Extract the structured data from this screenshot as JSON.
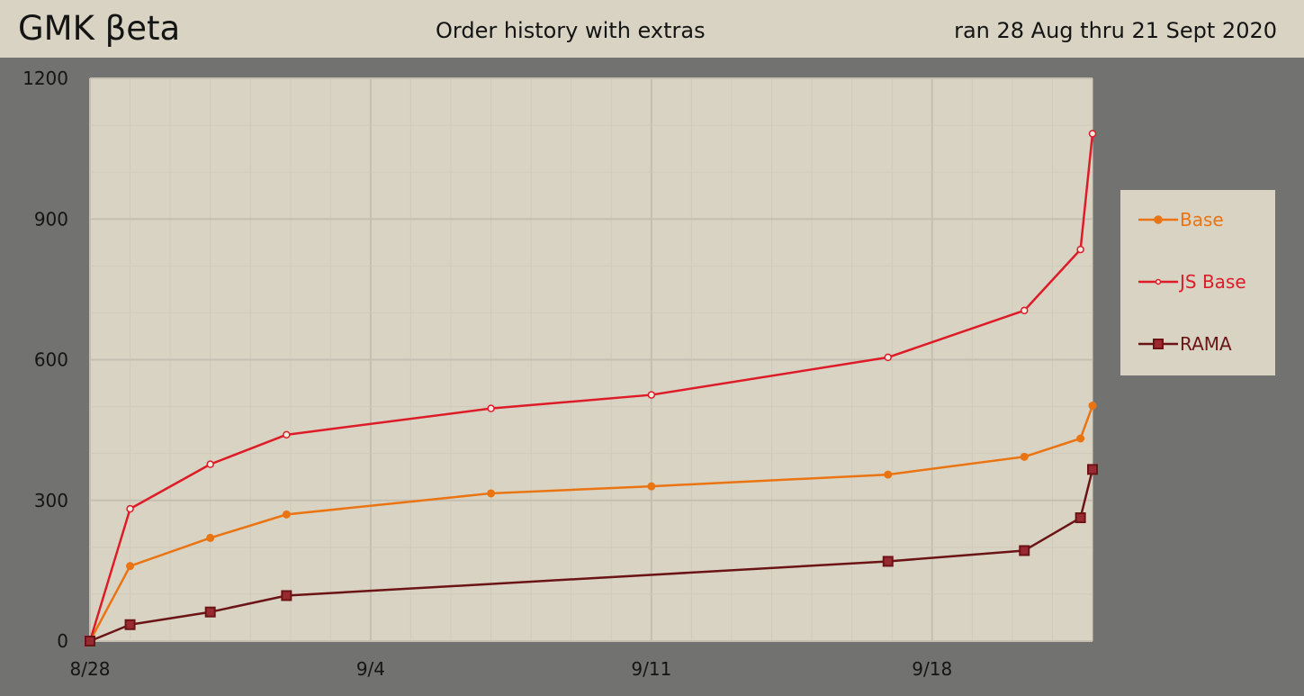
{
  "header": {
    "brand": "GMK βeta",
    "subtitle": "Order history with extras",
    "date_range": "ran 28 Aug thru 21 Sept 2020"
  },
  "colors": {
    "page_background": "#727370",
    "plot_background": "#d9d3c3",
    "grid_major": "#c4bfb1",
    "grid_minor": "#cfcabb",
    "axis_text": "#141414"
  },
  "chart_data": {
    "type": "line",
    "title": "Order history with extras",
    "xlabel": "",
    "ylabel": "",
    "x_unit": "days since 8/28",
    "xlim": [
      0,
      25
    ],
    "ylim": [
      0,
      1200
    ],
    "x_ticks": [
      {
        "value": 0,
        "label": "8/28"
      },
      {
        "value": 7,
        "label": "9/4"
      },
      {
        "value": 14,
        "label": "9/11"
      },
      {
        "value": 21,
        "label": "9/18"
      }
    ],
    "y_ticks": [
      {
        "value": 0,
        "label": "0"
      },
      {
        "value": 300,
        "label": "300"
      },
      {
        "value": 600,
        "label": "600"
      },
      {
        "value": 900,
        "label": "900"
      },
      {
        "value": 1200,
        "label": "1200"
      }
    ],
    "grid": true,
    "legend_position": "right",
    "series": [
      {
        "name": "Base",
        "color": "#ea7412",
        "marker": "circle",
        "points": [
          [
            0,
            0
          ],
          [
            1,
            160
          ],
          [
            3,
            220
          ],
          [
            4.9,
            270
          ],
          [
            10,
            315
          ],
          [
            14,
            330
          ],
          [
            19.9,
            355
          ],
          [
            23.3,
            393
          ],
          [
            24.7,
            432
          ],
          [
            25,
            502
          ]
        ]
      },
      {
        "name": "JS Base",
        "color": "#dd1c28",
        "marker": "hollow-circle",
        "points": [
          [
            0,
            0
          ],
          [
            1,
            282
          ],
          [
            3,
            377
          ],
          [
            4.9,
            440
          ],
          [
            10,
            496
          ],
          [
            14,
            525
          ],
          [
            19.9,
            605
          ],
          [
            23.3,
            705
          ],
          [
            24.7,
            835
          ],
          [
            25,
            1082
          ]
        ]
      },
      {
        "name": "RAMA",
        "color": "#6b1416",
        "marker": "square",
        "points": [
          [
            0,
            0
          ],
          [
            1,
            35
          ],
          [
            3,
            62
          ],
          [
            4.9,
            97
          ],
          [
            19.9,
            170
          ],
          [
            23.3,
            193
          ],
          [
            24.7,
            263
          ],
          [
            25,
            366
          ]
        ]
      }
    ]
  }
}
